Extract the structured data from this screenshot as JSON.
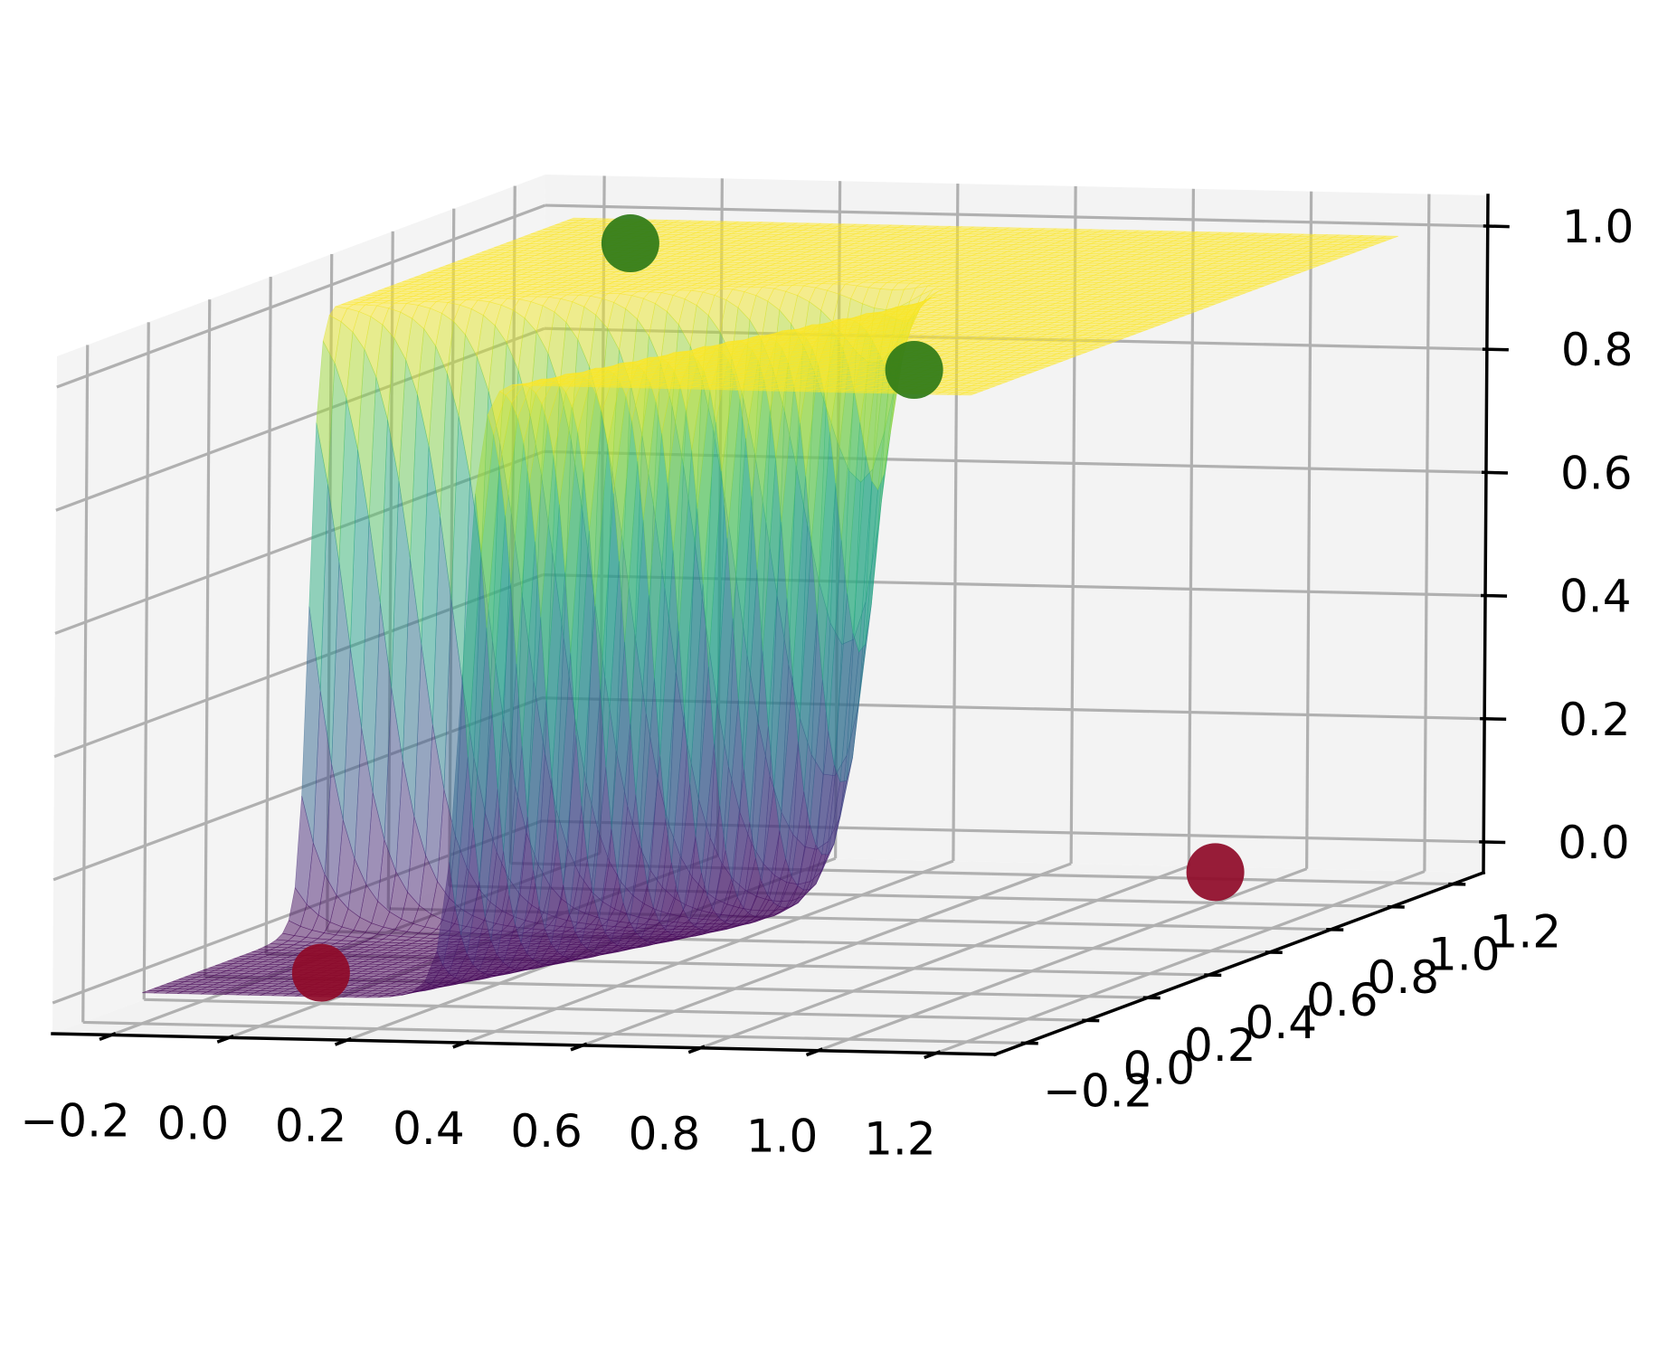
{
  "chart_data": {
    "type": "surface3d",
    "title": "",
    "xlabel": "",
    "ylabel": "",
    "zlabel": "",
    "xlim": [
      -0.3,
      1.3
    ],
    "ylim": [
      -0.3,
      1.3
    ],
    "zlim": [
      -0.05,
      1.05
    ],
    "x_ticks": [
      -0.2,
      0.0,
      0.2,
      0.4,
      0.6,
      0.8,
      1.0,
      1.2
    ],
    "y_ticks": [
      -0.2,
      0.0,
      0.2,
      0.4,
      0.6,
      0.8,
      1.0,
      1.2
    ],
    "z_ticks": [
      0.0,
      0.2,
      0.4,
      0.6,
      0.8,
      1.0
    ],
    "x_tick_labels": [
      "−0.2",
      "0.0",
      "0.2",
      "0.4",
      "0.6",
      "0.8",
      "1.0",
      "1.2"
    ],
    "y_tick_labels": [
      "−0.2",
      "0.0",
      "0.2",
      "0.4",
      "0.6",
      "0.8",
      "1.0",
      "1.2"
    ],
    "z_tick_labels": [
      "0.0",
      "0.2",
      "0.4",
      "0.6",
      "0.8",
      "1.0"
    ],
    "surface_domain": {
      "x": [
        -0.2,
        1.2
      ],
      "y": [
        -0.2,
        1.2
      ]
    },
    "surface": "z = sigmoid(a*x + b*y + c) surface over [-0.2,1.2]^2 (XOR-style decision surface)",
    "colormap": "viridis",
    "surface_alpha": 0.5,
    "grid": true,
    "points": [
      {
        "x": 0,
        "y": 0,
        "z": 0,
        "color": "#8f0a28"
      },
      {
        "x": 1,
        "y": 1,
        "z": 0,
        "color": "#8f0a28"
      },
      {
        "x": 1,
        "y": 0,
        "z": 1,
        "color": "#2e7a17"
      },
      {
        "x": 0,
        "y": 1,
        "z": 1,
        "color": "#2e7a17"
      }
    ],
    "pane_color": "#f2f2f2",
    "grid_color": "#b0b0b0"
  }
}
